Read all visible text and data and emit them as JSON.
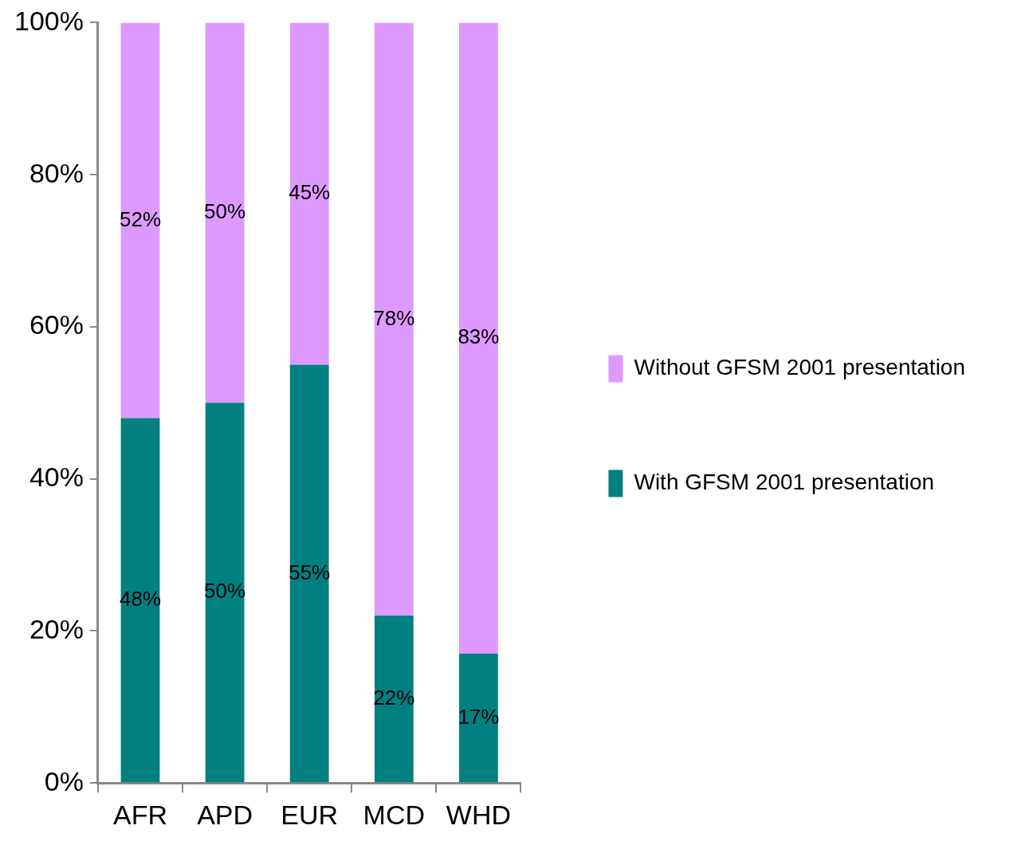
{
  "chart_data": {
    "type": "bar",
    "stacked": true,
    "categories": [
      "AFR",
      "APD",
      "EUR",
      "MCD",
      "WHD"
    ],
    "series": [
      {
        "name": "With GFSM 2001 presentation",
        "color": "#008080",
        "values": [
          48,
          50,
          55,
          22,
          17
        ],
        "value_labels": [
          "48%",
          "50%",
          "55%",
          "22%",
          "17%"
        ]
      },
      {
        "name": "Without GFSM 2001 presentation",
        "color": "#dd99ff",
        "values": [
          52,
          50,
          45,
          78,
          83
        ],
        "value_labels": [
          "52%",
          "50%",
          "45%",
          "78%",
          "83%"
        ]
      }
    ],
    "ylim": [
      0,
      100
    ],
    "yticks": [
      {
        "value": 0,
        "label": "0%"
      },
      {
        "value": 20,
        "label": "20%"
      },
      {
        "value": 40,
        "label": "40%"
      },
      {
        "value": 60,
        "label": "60%"
      },
      {
        "value": 80,
        "label": "80%"
      },
      {
        "value": 100,
        "label": "100%"
      }
    ],
    "grid": false,
    "legend": "right"
  }
}
